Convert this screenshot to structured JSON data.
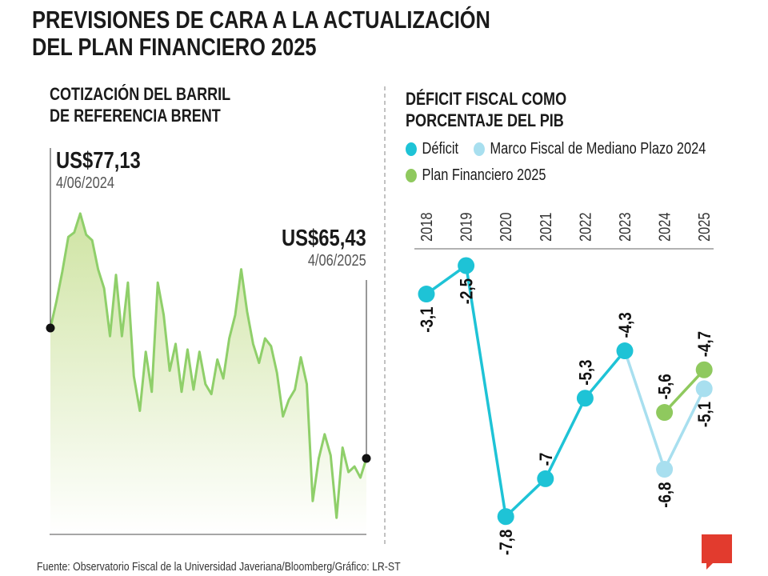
{
  "title_line1": "PREVISIONES DE CARA A LA ACTUALIZACIÓN",
  "title_line2": "DEL PLAN FINANCIERO 2025",
  "footer": "Fuente: Observatorio Fiscal de la Universidad Javeriana/Bloomberg/Gráfico: LR-ST",
  "logo": "LR",
  "colors": {
    "deficit": "#1ec3d6",
    "marco": "#a8dfef",
    "plan": "#8fc95e",
    "brent": "#8fcf6a"
  },
  "chart_data": [
    {
      "type": "area",
      "title_line1": "COTIZACIÓN DEL BARRIL",
      "title_line2": "DE REFERENCIA BRENT",
      "start": {
        "value_label": "US$77,13",
        "date": "4/06/2024",
        "value": 77.13
      },
      "end": {
        "value_label": "US$65,43",
        "date": "4/06/2025",
        "value": 65.43
      },
      "ylim": [
        58,
        90
      ],
      "values": [
        77.13,
        79.5,
        82.2,
        85.3,
        85.7,
        87.4,
        85.5,
        85.0,
        82.4,
        80.7,
        76.4,
        81.9,
        76.4,
        81.2,
        72.8,
        69.7,
        75.0,
        71.4,
        81.2,
        78.3,
        73.3,
        75.7,
        71.4,
        75.2,
        71.6,
        75.0,
        72.1,
        71.2,
        74.3,
        72.6,
        76.2,
        78.3,
        82.4,
        78.6,
        75.7,
        74.0,
        76.2,
        75.5,
        73.1,
        69.2,
        70.7,
        71.6,
        74.5,
        72.1,
        61.6,
        65.4,
        67.6,
        65.7,
        60.1,
        66.4,
        64.2,
        64.7,
        63.7,
        65.43
      ]
    },
    {
      "type": "line",
      "title_line1": "DÉFICIT FISCAL COMO",
      "title_line2": "PORCENTAJE DEL PIB",
      "categories": [
        "2018",
        "2019",
        "2020",
        "2021",
        "2022",
        "2023",
        "2024",
        "2025"
      ],
      "legend": [
        "Déficit",
        "Marco Fiscal de Mediano Plazo 2024",
        "Plan Financiero 2025"
      ],
      "series": [
        {
          "name": "Déficit",
          "values": [
            -3.1,
            -2.5,
            -7.8,
            -7,
            -5.3,
            -4.3,
            null,
            null
          ],
          "labels": [
            "-3,1",
            "-2,5",
            "-7,8",
            "-7",
            "-5,3",
            "-4,3",
            null,
            null
          ]
        },
        {
          "name": "Marco Fiscal de Mediano Plazo 2024",
          "values": [
            null,
            null,
            null,
            null,
            null,
            -4.3,
            -6.8,
            -5.1
          ],
          "labels": [
            null,
            null,
            null,
            null,
            null,
            null,
            "-6,8",
            "-5,1"
          ]
        },
        {
          "name": "Plan Financiero 2025",
          "values": [
            null,
            null,
            null,
            null,
            null,
            null,
            -5.6,
            -4.7
          ],
          "labels": [
            null,
            null,
            null,
            null,
            null,
            null,
            "-5,6",
            "-4,7"
          ]
        }
      ]
    }
  ]
}
